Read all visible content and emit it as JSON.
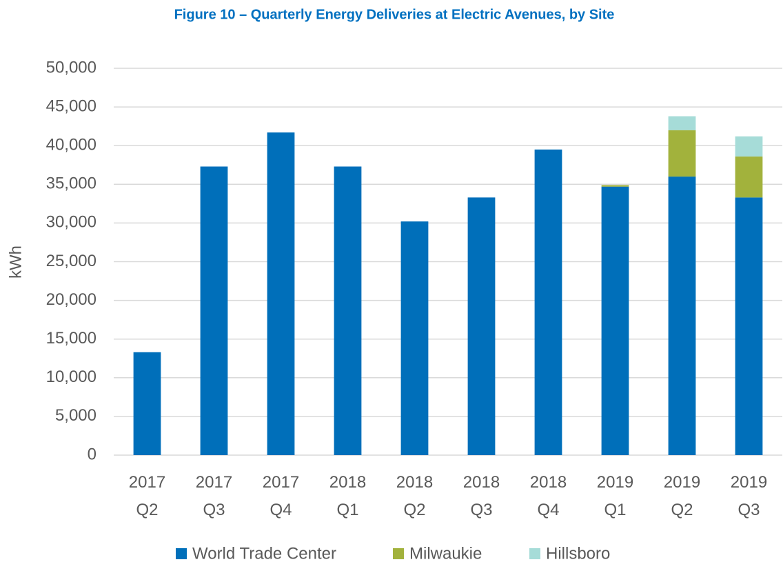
{
  "chart_data": {
    "type": "stacked_bar",
    "title": "Figure 10 – Quarterly Energy Deliveries at Electric Avenues, by Site",
    "y_label": "kWh",
    "categories": [
      "2017 Q2",
      "2017 Q3",
      "2017 Q4",
      "2018 Q1",
      "2018 Q2",
      "2018 Q3",
      "2018 Q4",
      "2019 Q1",
      "2019 Q2",
      "2019 Q3"
    ],
    "series": [
      {
        "name": "World Trade Center",
        "color": "#006fba",
        "values": [
          13300,
          37300,
          41700,
          37300,
          30200,
          33300,
          39500,
          34700,
          36000,
          33300
        ]
      },
      {
        "name": "Milwaukie",
        "color": "#a2b23c",
        "values": [
          null,
          null,
          null,
          null,
          null,
          null,
          null,
          200,
          6000,
          5300
        ]
      },
      {
        "name": "Hillsboro",
        "color": "#a6dcd8",
        "values": [
          null,
          null,
          null,
          null,
          null,
          null,
          null,
          null,
          1800,
          2600
        ]
      }
    ],
    "ylim": [
      0,
      50000
    ],
    "yticks": [
      0,
      {
        "value": 5000,
        "label": "5,000"
      },
      {
        "value": 10000,
        "label": "10,000"
      },
      {
        "value": 15000,
        "label": "15,000"
      },
      {
        "value": 20000,
        "label": "20,000"
      },
      {
        "value": 25000,
        "label": "25,000"
      },
      {
        "value": 30000,
        "label": "30,000"
      },
      {
        "value": 35000,
        "label": "35,000"
      },
      {
        "value": 40000,
        "label": "40,000"
      },
      {
        "value": 45000,
        "label": "45,000"
      },
      {
        "value": 50000,
        "label": "50,000"
      }
    ],
    "grid": true,
    "legend": "bottom"
  }
}
